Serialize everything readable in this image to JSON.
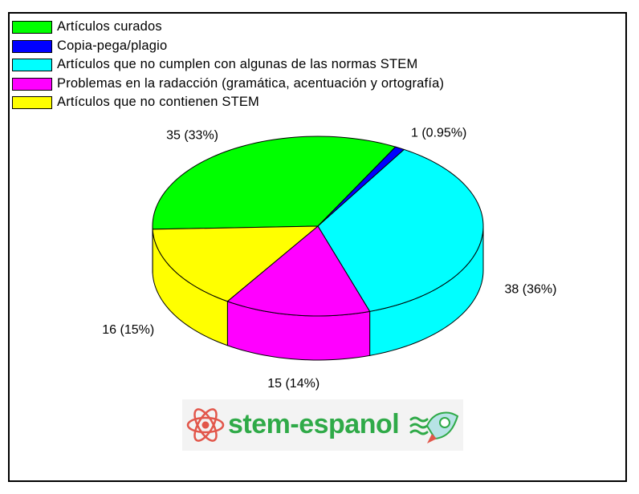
{
  "chart_data": {
    "type": "pie",
    "legend_position": "top-left",
    "slices": [
      {
        "name": "Artículos curados",
        "value": 35,
        "label": "35 (33%)",
        "color": "#00ff00"
      },
      {
        "name": "Copia-pega/plagio",
        "value": 1,
        "label": "1 (0.95%)",
        "color": "#0000ff"
      },
      {
        "name": "Artículos que no cumplen con algunas de las normas STEM",
        "value": 38,
        "label": "38 (36%)",
        "color": "#00ffff"
      },
      {
        "name": "Problemas en la radacción (gramática, acentuación y ortografía)",
        "value": 15,
        "label": "15 (14%)",
        "color": "#ff00ff"
      },
      {
        "name": "Artículos que no contienen STEM",
        "value": 16,
        "label": "16 (15%)",
        "color": "#ffff00"
      }
    ]
  },
  "logo": {
    "text": "stem-espanol",
    "icon_left": "atom-icon",
    "icon_right": "rocket-icon",
    "color": "#2faa48"
  }
}
